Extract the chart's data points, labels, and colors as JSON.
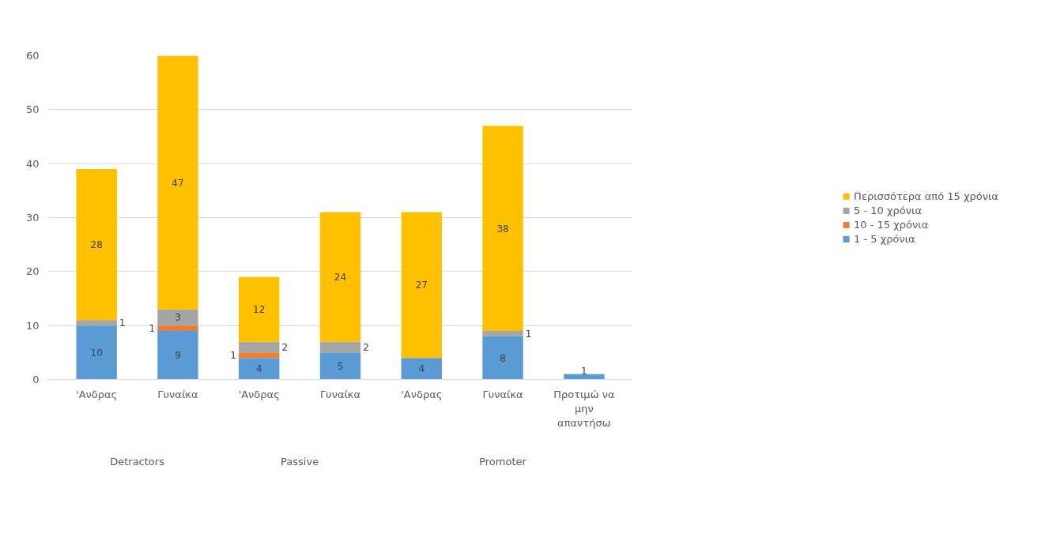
{
  "chart_data": {
    "type": "bar",
    "stacked": true,
    "data_labels": true,
    "grid": "y",
    "legend": "right",
    "categories": [
      "'Ανδρας",
      "Γυναίκα",
      "'Ανδρας",
      "Γυναίκα",
      "'Ανδρας",
      "Γυναίκα",
      "Προτιμώ να μην απαντήσω"
    ],
    "annotations": [
      "Detractors",
      "Passive",
      "Promoter"
    ],
    "ylim": [
      0,
      60
    ],
    "yticks": [
      0,
      10,
      20,
      30,
      40,
      50,
      60
    ],
    "series": [
      {
        "name": "1 - 5 χρόνια",
        "color": "#5b9bd5",
        "values": [
          10,
          9,
          4,
          5,
          4,
          8,
          1
        ]
      },
      {
        "name": "10 - 15 χρόνια",
        "color": "#ed7d31",
        "values": [
          null,
          1,
          1,
          null,
          null,
          null,
          null
        ]
      },
      {
        "name": "5 - 10 χρόνια",
        "color": "#a5a5a5",
        "values": [
          1,
          3,
          2,
          2,
          null,
          1,
          null
        ]
      },
      {
        "name": "Περισσότερα από 15 χρόνια",
        "color": "#ffc000",
        "values": [
          28,
          47,
          12,
          24,
          27,
          38,
          null
        ]
      }
    ]
  }
}
